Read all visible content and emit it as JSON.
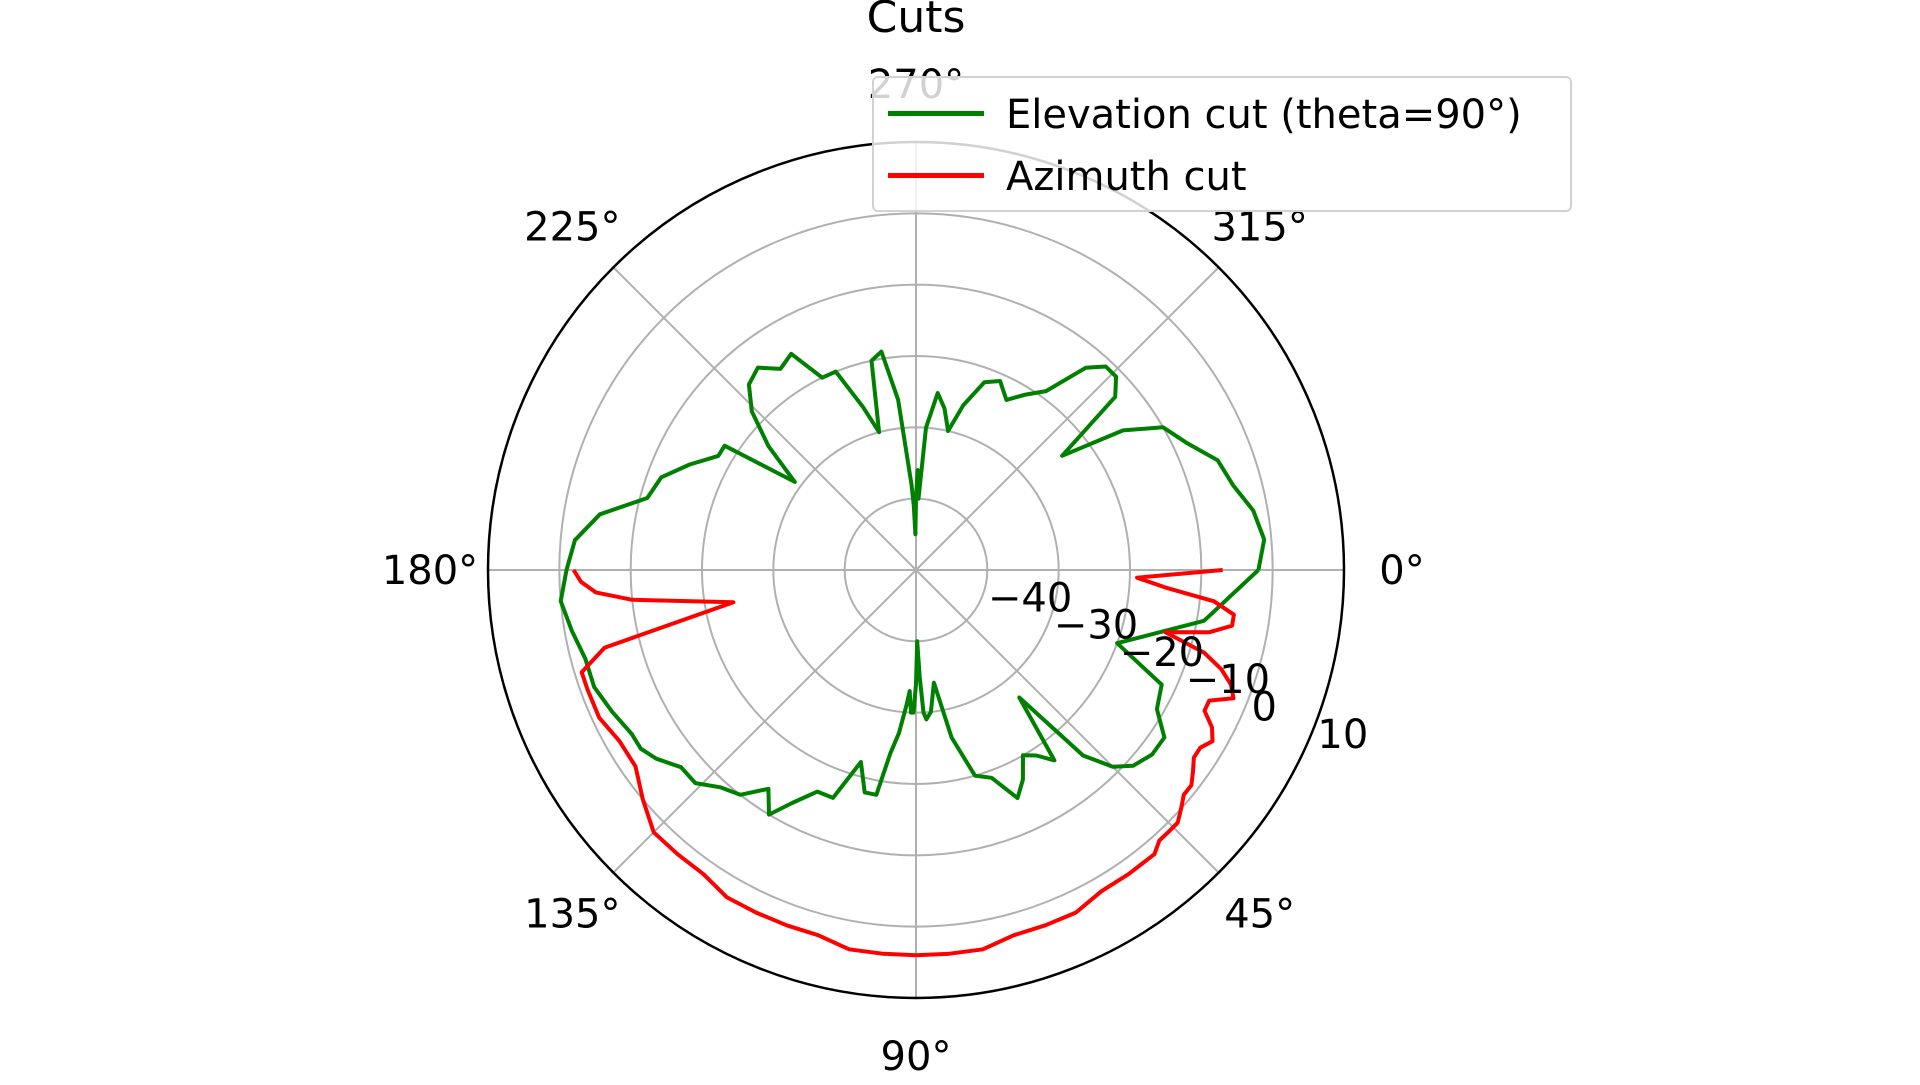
{
  "chart_data": {
    "type": "line",
    "projection": "polar",
    "title": "Cuts",
    "theta_direction": "clockwise",
    "theta_zero_location": "east",
    "theta_ticks": [
      "0°",
      "45°",
      "90°",
      "135°",
      "180°",
      "225°",
      "270°",
      "315°"
    ],
    "theta_tick_values": [
      0,
      45,
      90,
      135,
      180,
      225,
      270,
      315
    ],
    "r_ticks": [
      "−40",
      "−30",
      "−20",
      "−10",
      "0",
      "10"
    ],
    "r_tick_values": [
      -40,
      -30,
      -20,
      -10,
      0,
      10
    ],
    "r_label_position_deg": 22.5,
    "rlim": [
      -50,
      10
    ],
    "grid": true,
    "legend_position": "top-right",
    "colors": {
      "elevation": "#008000",
      "azimuth": "#ff0000",
      "grid": "#b0b0b0",
      "frame": "#000000"
    },
    "series": [
      {
        "name": "Elevation cut (theta=90°)",
        "color": "#008000",
        "theta": [
          0,
          10,
          20,
          25,
          30,
          34,
          38,
          42,
          45,
          48,
          51,
          54,
          57,
          60,
          63,
          66,
          70,
          74,
          78,
          81,
          84,
          86,
          87,
          88,
          89,
          90,
          91,
          92,
          93,
          94,
          96,
          98,
          100,
          103,
          106,
          110,
          114,
          118,
          121,
          124,
          128,
          132,
          136,
          140,
          144,
          147,
          150,
          155,
          160,
          165,
          170,
          175,
          180,
          185,
          190,
          195,
          200,
          205,
          210,
          213,
          216,
          220,
          224,
          228,
          232,
          236,
          240,
          244,
          248,
          252,
          255,
          258,
          261,
          264,
          267,
          268,
          269,
          270,
          271,
          272,
          274,
          277,
          280,
          283,
          286,
          290,
          294,
          298,
          302,
          306,
          310,
          313,
          316,
          319,
          322,
          326,
          330,
          335,
          340,
          345,
          350,
          355,
          360
        ],
        "r": [
          -2,
          -9,
          -20,
          -12,
          -11,
          -8,
          -8,
          -9,
          -11,
          -15,
          -27,
          -17,
          -19,
          -20,
          -17,
          -15,
          -19,
          -20,
          -26,
          -34,
          -30,
          -29,
          -30,
          -35,
          -40,
          -34,
          -30,
          -30,
          -33,
          -31,
          -27,
          -24,
          -18,
          -18,
          -22,
          -16,
          -16,
          -13,
          -10,
          -13,
          -10,
          -9,
          -7,
          -7,
          -5,
          -4,
          -4,
          -3,
          -2,
          -2,
          -1,
          0,
          -1,
          -2,
          -5,
          -11,
          -12,
          -15,
          -18,
          -18,
          -29,
          -23,
          -18,
          -15,
          -14,
          -16,
          -15,
          -20,
          -20,
          -26,
          -30,
          -20,
          -19,
          -26,
          -38,
          -41,
          -45,
          -40,
          -36,
          -40,
          -30,
          -25,
          -27,
          -30,
          -26,
          -22,
          -21,
          -23,
          -21,
          -19,
          -13,
          -11,
          -11,
          -13,
          -24,
          -15,
          -10,
          -8,
          -5,
          -4,
          -2,
          -1,
          -2
        ]
      },
      {
        "name": "Azimuth cut",
        "color": "#ff0000",
        "theta": [
          0,
          2,
          4,
          6,
          8,
          10,
          12,
          14,
          16,
          18,
          20,
          22,
          24,
          26,
          28,
          30,
          32,
          34,
          36,
          38,
          40,
          42,
          44,
          46,
          48,
          50,
          55,
          60,
          65,
          70,
          75,
          80,
          85,
          90,
          95,
          100,
          105,
          110,
          115,
          120,
          125,
          130,
          135,
          140,
          145,
          150,
          155,
          160,
          163,
          166,
          170,
          174,
          176,
          178,
          180
        ],
        "r": [
          -7,
          -19,
          -15,
          -8,
          -5,
          -5,
          -8,
          -14,
          -8,
          -5,
          -3,
          -2,
          -5,
          -5,
          -3,
          -2,
          -3,
          -3,
          -2,
          -1,
          -1,
          0,
          1,
          1,
          1,
          2,
          2,
          2,
          3,
          3,
          3,
          4,
          4,
          4,
          4,
          4,
          3,
          3,
          3,
          3,
          2,
          2,
          2,
          0,
          -2,
          -2,
          -1,
          -1,
          -1,
          -5,
          -24,
          -10,
          -5,
          -3,
          -2
        ]
      }
    ]
  }
}
